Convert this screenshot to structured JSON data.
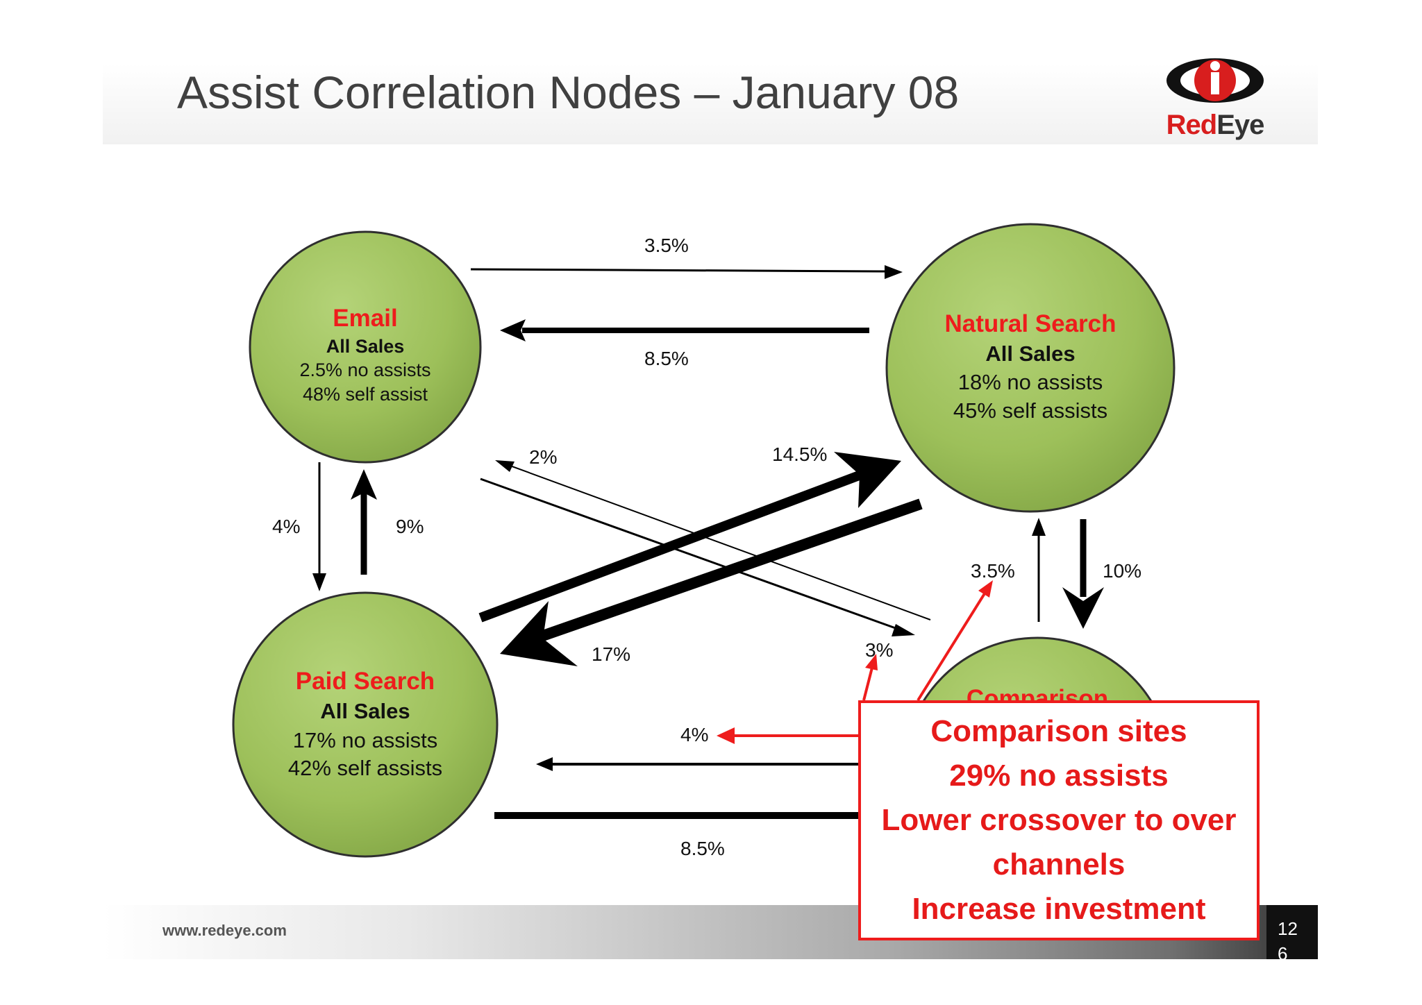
{
  "slide": {
    "title": "Assist Correlation Nodes – January 08",
    "logo": {
      "text_red": "Red",
      "text_dark": "Eye"
    },
    "footer_url": "www.redeye.com",
    "page_number": "126"
  },
  "colors": {
    "node_fill": "#9dc05a",
    "node_stroke": "#2f2f2f",
    "node_title": "#ee1c1c",
    "arrow": "#000000",
    "highlight": "#ee1c1c"
  },
  "nodes": {
    "email": {
      "title": "Email",
      "subtitle": "All Sales",
      "line1": "2.5% no assists",
      "line2": "48% self assist"
    },
    "natural": {
      "title": "Natural Search",
      "subtitle": "All Sales",
      "line1": "18% no assists",
      "line2": "45% self assists"
    },
    "paid": {
      "title": "Paid Search",
      "subtitle": "All Sales",
      "line1": "17% no assists",
      "line2": "42% self assists"
    },
    "comparison": {
      "title": "Comparison"
    }
  },
  "edges": [
    {
      "from": "Email",
      "to": "Natural Search",
      "label": "3.5%"
    },
    {
      "from": "Natural Search",
      "to": "Email",
      "label": "8.5%"
    },
    {
      "from": "Email",
      "to": "Paid Search",
      "label": "4%"
    },
    {
      "from": "Paid Search",
      "to": "Email",
      "label": "9%"
    },
    {
      "from": "Comparison",
      "to": "Email",
      "label": "2%"
    },
    {
      "from": "Paid Search",
      "to": "Natural Search",
      "label": "14.5%"
    },
    {
      "from": "Natural Search",
      "to": "Paid Search",
      "label": "17%"
    },
    {
      "from": "Email",
      "to": "Comparison",
      "label": "3%"
    },
    {
      "from": "Comparison",
      "to": "Natural Search",
      "label": "3.5%"
    },
    {
      "from": "Natural Search",
      "to": "Comparison",
      "label": "10%"
    },
    {
      "from": "Comparison",
      "to": "Paid Search",
      "label": "4%"
    },
    {
      "from": "Paid Search",
      "to": "Comparison",
      "label": "8.5%"
    }
  ],
  "callout": {
    "lines": [
      "Comparison sites",
      "29% no assists",
      "Lower crossover to over",
      "channels",
      "Increase investment"
    ]
  }
}
